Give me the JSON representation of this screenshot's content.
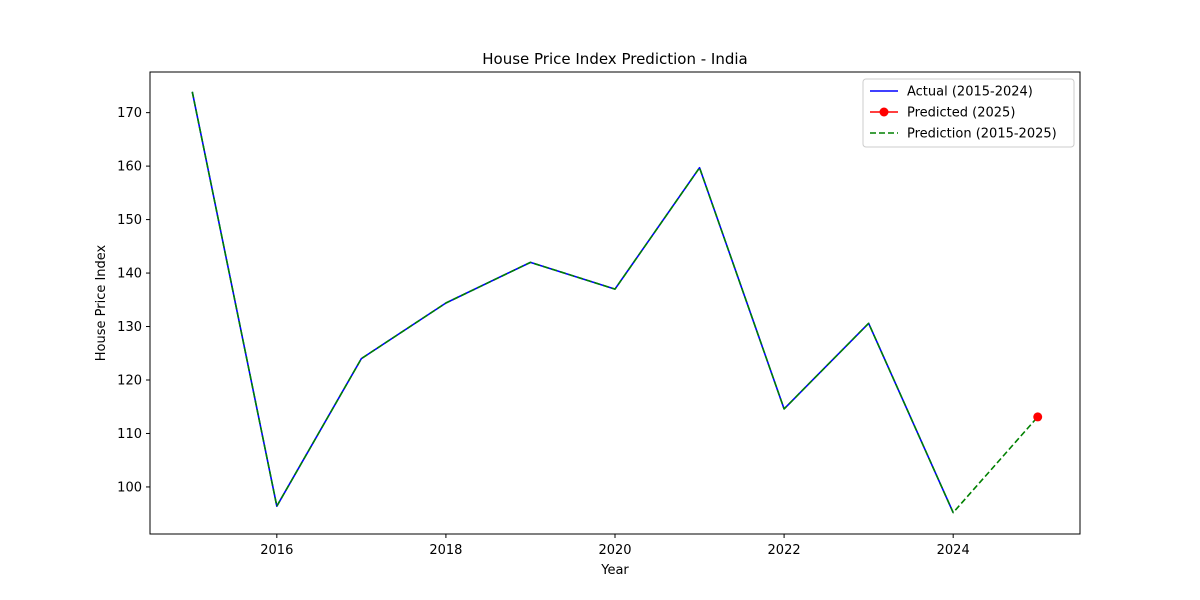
{
  "chart_data": {
    "type": "line",
    "title": "House Price Index Prediction - India",
    "xlabel": "Year",
    "ylabel": "House Price Index",
    "xlim": [
      2014.5,
      2025.5
    ],
    "ylim": [
      91.2,
      177.6
    ],
    "xticks": [
      2016,
      2018,
      2020,
      2022,
      2024
    ],
    "yticks": [
      100,
      110,
      120,
      130,
      140,
      150,
      160,
      170
    ],
    "grid": false,
    "legend_position": "top-right",
    "series": [
      {
        "name": "Actual (2015-2024)",
        "color": "#0000ff",
        "style": "solid",
        "x": [
          2015,
          2016,
          2017,
          2018,
          2019,
          2020,
          2021,
          2022,
          2023,
          2024
        ],
        "y": [
          173.9,
          96.4,
          124.0,
          134.4,
          142.0,
          137.0,
          159.7,
          114.6,
          130.6,
          95.2
        ]
      },
      {
        "name": "Predicted (2025)",
        "color": "#ff0000",
        "style": "marker",
        "x": [
          2025
        ],
        "y": [
          113.1
        ]
      },
      {
        "name": "Prediction (2015-2025)",
        "color": "#008000",
        "style": "dashed",
        "x": [
          2015,
          2016,
          2017,
          2018,
          2019,
          2020,
          2021,
          2022,
          2023,
          2024,
          2025
        ],
        "y": [
          173.9,
          96.4,
          124.0,
          134.4,
          142.0,
          137.0,
          159.7,
          114.6,
          130.6,
          95.2,
          113.1
        ]
      }
    ]
  }
}
